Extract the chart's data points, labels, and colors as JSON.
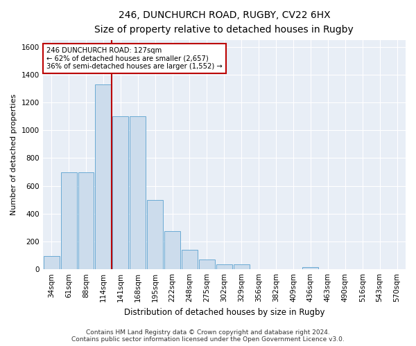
{
  "title_line1": "246, DUNCHURCH ROAD, RUGBY, CV22 6HX",
  "title_line2": "Size of property relative to detached houses in Rugby",
  "xlabel": "Distribution of detached houses by size in Rugby",
  "ylabel": "Number of detached properties",
  "footer": "Contains HM Land Registry data © Crown copyright and database right 2024.\nContains public sector information licensed under the Open Government Licence v3.0.",
  "bar_labels": [
    "34sqm",
    "61sqm",
    "88sqm",
    "114sqm",
    "141sqm",
    "168sqm",
    "195sqm",
    "222sqm",
    "248sqm",
    "275sqm",
    "302sqm",
    "329sqm",
    "356sqm",
    "382sqm",
    "409sqm",
    "436sqm",
    "463sqm",
    "490sqm",
    "516sqm",
    "543sqm",
    "570sqm"
  ],
  "bar_heights": [
    95,
    700,
    700,
    1330,
    1100,
    1100,
    500,
    275,
    140,
    70,
    35,
    35,
    0,
    0,
    0,
    15,
    0,
    0,
    0,
    0,
    0
  ],
  "bar_color": "#ccdcec",
  "bar_edge_color": "#6aaad4",
  "vline_x": 3.5,
  "vline_color": "#bb0000",
  "annotation_line1": "246 DUNCHURCH ROAD: 127sqm",
  "annotation_line2": "← 62% of detached houses are smaller (2,657)",
  "annotation_line3": "36% of semi-detached houses are larger (1,552) →",
  "annotation_box_color": "#bb0000",
  "ylim": [
    0,
    1650
  ],
  "yticks": [
    0,
    200,
    400,
    600,
    800,
    1000,
    1200,
    1400,
    1600
  ],
  "background_color": "#e8eef6",
  "grid_color": "#ffffff",
  "title1_fontsize": 10,
  "title2_fontsize": 9,
  "ylabel_fontsize": 8,
  "xlabel_fontsize": 8.5,
  "tick_fontsize": 7.5,
  "footer_fontsize": 6.5
}
